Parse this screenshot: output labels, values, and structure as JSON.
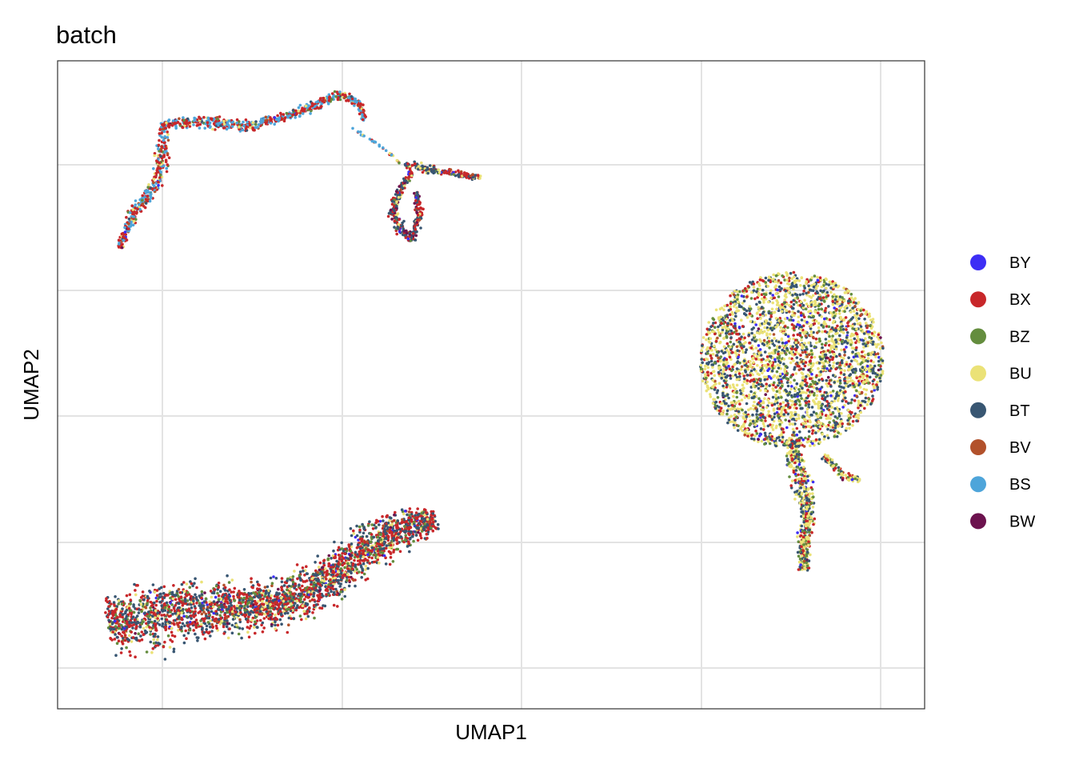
{
  "chart_data": {
    "type": "scatter",
    "title": "batch",
    "xlabel": "UMAP1",
    "ylabel": "UMAP2",
    "grid": true,
    "tick_labels_shown": false,
    "legend_placement": "right",
    "series": [
      {
        "name": "BY",
        "color": "#3D2EF5"
      },
      {
        "name": "BX",
        "color": "#C8272A"
      },
      {
        "name": "BZ",
        "color": "#648D3E"
      },
      {
        "name": "BU",
        "color": "#EBE277"
      },
      {
        "name": "BT",
        "color": "#385672"
      },
      {
        "name": "BV",
        "color": "#B2512B"
      },
      {
        "name": "BS",
        "color": "#4EA5DA"
      },
      {
        "name": "BW",
        "color": "#6C124E"
      }
    ],
    "clusters": [
      {
        "id": "upper-left-arc",
        "mix": {
          "BX": 0.4,
          "BS": 0.38,
          "BU": 0.08,
          "BZ": 0.06,
          "BV": 0.04,
          "BT": 0.02,
          "BY": 0.01,
          "BW": 0.01
        }
      },
      {
        "id": "upper-middle-hook",
        "mix": {
          "BT": 0.35,
          "BX": 0.33,
          "BU": 0.12,
          "BW": 0.07,
          "BZ": 0.05,
          "BY": 0.04,
          "BV": 0.04
        }
      },
      {
        "id": "lower-left-elongated",
        "mix": {
          "BX": 0.38,
          "BT": 0.33,
          "BZ": 0.12,
          "BU": 0.1,
          "BV": 0.03,
          "BY": 0.02,
          "BW": 0.02
        }
      },
      {
        "id": "right-mushroom",
        "mix": {
          "BU": 0.4,
          "BT": 0.27,
          "BX": 0.15,
          "BZ": 0.12,
          "BY": 0.03,
          "BV": 0.02,
          "BW": 0.01
        }
      }
    ]
  }
}
